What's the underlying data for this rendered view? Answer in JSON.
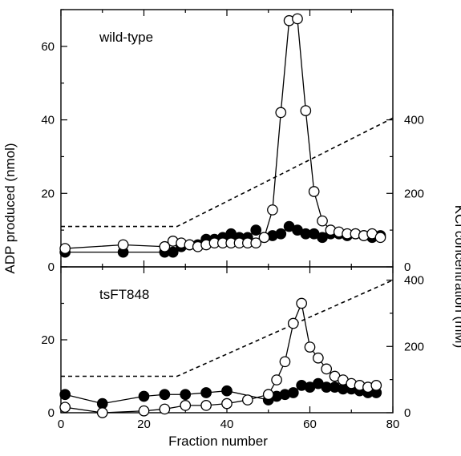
{
  "chart_data": {
    "type": "line",
    "xlabel": "Fraction number",
    "ylabel_left": "ADP produced (nmol)",
    "ylabel_right": "KCl concentration (mM)",
    "xlim": [
      0,
      80
    ],
    "x_ticks": [
      "0",
      "20",
      "40",
      "60",
      "80"
    ],
    "panels": [
      {
        "title": "wild-type",
        "ylim_left": [
          0,
          70
        ],
        "y_ticks_left": [
          "0",
          "20",
          "40",
          "60"
        ],
        "ylim_right": [
          0,
          700
        ],
        "y_ticks_right": [
          "0",
          "200",
          "400"
        ],
        "series": [
          {
            "style": "open-circle",
            "points": [
              [
                1,
                5
              ],
              [
                15,
                6
              ],
              [
                25,
                5.5
              ],
              [
                27,
                7
              ],
              [
                29,
                6.5
              ],
              [
                31,
                6
              ],
              [
                33,
                5.5
              ],
              [
                35,
                6
              ],
              [
                37,
                6.5
              ],
              [
                39,
                6.5
              ],
              [
                41,
                6.5
              ],
              [
                43,
                6.5
              ],
              [
                45,
                6.5
              ],
              [
                47,
                6.5
              ],
              [
                49,
                8
              ],
              [
                51,
                15.5
              ],
              [
                53,
                42
              ],
              [
                55,
                67
              ],
              [
                57,
                67.5
              ],
              [
                59,
                42.5
              ],
              [
                61,
                20.5
              ],
              [
                63,
                12.5
              ],
              [
                65,
                10
              ],
              [
                67,
                9.5
              ],
              [
                69,
                9
              ],
              [
                71,
                9
              ],
              [
                73,
                8.5
              ],
              [
                75,
                9
              ],
              [
                77,
                8
              ]
            ]
          },
          {
            "style": "filled-circle",
            "points": [
              [
                1,
                4
              ],
              [
                15,
                4
              ],
              [
                25,
                4
              ],
              [
                27,
                4
              ],
              [
                29,
                5.5
              ],
              [
                31,
                6
              ],
              [
                33,
                6
              ],
              [
                35,
                7.5
              ],
              [
                37,
                7.5
              ],
              [
                39,
                8
              ],
              [
                41,
                9
              ],
              [
                43,
                8
              ],
              [
                45,
                8
              ],
              [
                47,
                10
              ],
              [
                49,
                8
              ],
              [
                51,
                8.5
              ],
              [
                53,
                9
              ],
              [
                55,
                11
              ],
              [
                57,
                10
              ],
              [
                59,
                9
              ],
              [
                61,
                9
              ],
              [
                63,
                8
              ],
              [
                65,
                9
              ],
              [
                67,
                9
              ],
              [
                69,
                8.5
              ],
              [
                71,
                9
              ],
              [
                73,
                8.5
              ],
              [
                75,
                8
              ],
              [
                77,
                8.5
              ]
            ]
          }
        ],
        "kcl_gradient": [
          [
            0,
            110
          ],
          [
            28,
            110
          ],
          [
            80,
            405
          ]
        ]
      },
      {
        "title": "tsFT848",
        "ylim_left": [
          0,
          40
        ],
        "y_ticks_left": [
          "0",
          "20"
        ],
        "ylim_right": [
          0,
          440
        ],
        "y_ticks_right": [
          "0",
          "200",
          "400"
        ],
        "series": [
          {
            "style": "open-circle",
            "points": [
              [
                1,
                1.5
              ],
              [
                10,
                0
              ],
              [
                20,
                0.5
              ],
              [
                25,
                1
              ],
              [
                30,
                2
              ],
              [
                35,
                2
              ],
              [
                40,
                2.5
              ],
              [
                45,
                3.5
              ],
              [
                50,
                5
              ],
              [
                52,
                9
              ],
              [
                54,
                14
              ],
              [
                56,
                24.5
              ],
              [
                58,
                30
              ],
              [
                60,
                18
              ],
              [
                62,
                15
              ],
              [
                64,
                12
              ],
              [
                66,
                10
              ],
              [
                68,
                9
              ],
              [
                70,
                8
              ],
              [
                72,
                7.5
              ],
              [
                74,
                7
              ],
              [
                76,
                7.5
              ]
            ]
          },
          {
            "style": "filled-circle",
            "points": [
              [
                1,
                5
              ],
              [
                10,
                2.5
              ],
              [
                20,
                4.5
              ],
              [
                25,
                5
              ],
              [
                30,
                5
              ],
              [
                35,
                5.5
              ],
              [
                40,
                6
              ],
              [
                50,
                3.5
              ],
              [
                52,
                4.5
              ],
              [
                54,
                5
              ],
              [
                56,
                5.5
              ],
              [
                58,
                7.5
              ],
              [
                60,
                7
              ],
              [
                62,
                8
              ],
              [
                64,
                7
              ],
              [
                66,
                7
              ],
              [
                68,
                6.5
              ],
              [
                70,
                6.5
              ],
              [
                72,
                6
              ],
              [
                74,
                5.5
              ],
              [
                76,
                5.5
              ]
            ]
          }
        ],
        "kcl_gradient": [
          [
            0,
            110
          ],
          [
            28,
            110
          ],
          [
            80,
            400
          ]
        ]
      }
    ]
  }
}
